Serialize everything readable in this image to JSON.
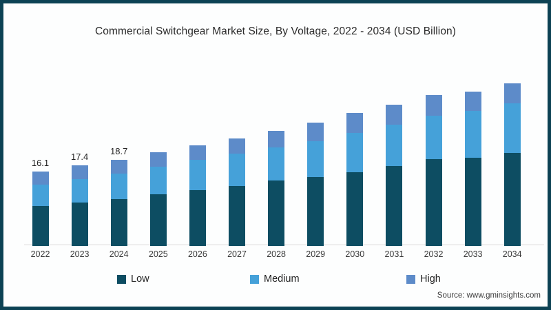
{
  "frame": {
    "border_color": "#0d4254",
    "background": "#fdfefe"
  },
  "title": "Commercial Switchgear Market Size, By Voltage, 2022 - 2034 (USD Billion)",
  "source": "Source: www.gminsights.com",
  "legend": {
    "position": "bottom",
    "items": [
      {
        "label": "Low",
        "color": "#0d4d62"
      },
      {
        "label": "Medium",
        "color": "#45a1d9"
      },
      {
        "label": "High",
        "color": "#5d8bc9"
      }
    ]
  },
  "chart_data": {
    "type": "bar",
    "stacked": true,
    "title": "Commercial Switchgear Market Size, By Voltage, 2022 - 2034 (USD Billion)",
    "xlabel": "",
    "ylabel": "USD Billion",
    "grid": false,
    "axis_visible": false,
    "categories": [
      "2022",
      "2023",
      "2024",
      "2025",
      "2026",
      "2027",
      "2028",
      "2029",
      "2030",
      "2031",
      "2032",
      "2033",
      "2034"
    ],
    "series": [
      {
        "name": "Low",
        "color": "#0d4d62",
        "values": [
          8.7,
          9.4,
          10.2,
          11.2,
          12.0,
          12.9,
          14.1,
          14.9,
          16.0,
          17.3,
          18.8,
          19.0,
          20.1
        ]
      },
      {
        "name": "Medium",
        "color": "#45a1d9",
        "values": [
          4.6,
          5.0,
          5.5,
          6.0,
          6.7,
          7.1,
          7.2,
          7.8,
          8.5,
          8.9,
          9.4,
          10.2,
          10.7
        ]
      },
      {
        "name": "High",
        "color": "#5d8bc9",
        "values": [
          2.8,
          3.0,
          3.0,
          3.0,
          3.0,
          3.2,
          3.6,
          4.0,
          4.2,
          4.3,
          4.5,
          4.2,
          4.3
        ]
      }
    ],
    "totals": [
      16.1,
      17.4,
      18.7,
      20.2,
      21.7,
      23.2,
      24.9,
      26.7,
      28.7,
      30.5,
      32.7,
      33.4,
      35.1
    ],
    "data_labels": [
      "16.1",
      "17.4",
      "18.7",
      "",
      "",
      "",
      "",
      "",
      "",
      "",
      "",
      "",
      ""
    ]
  }
}
